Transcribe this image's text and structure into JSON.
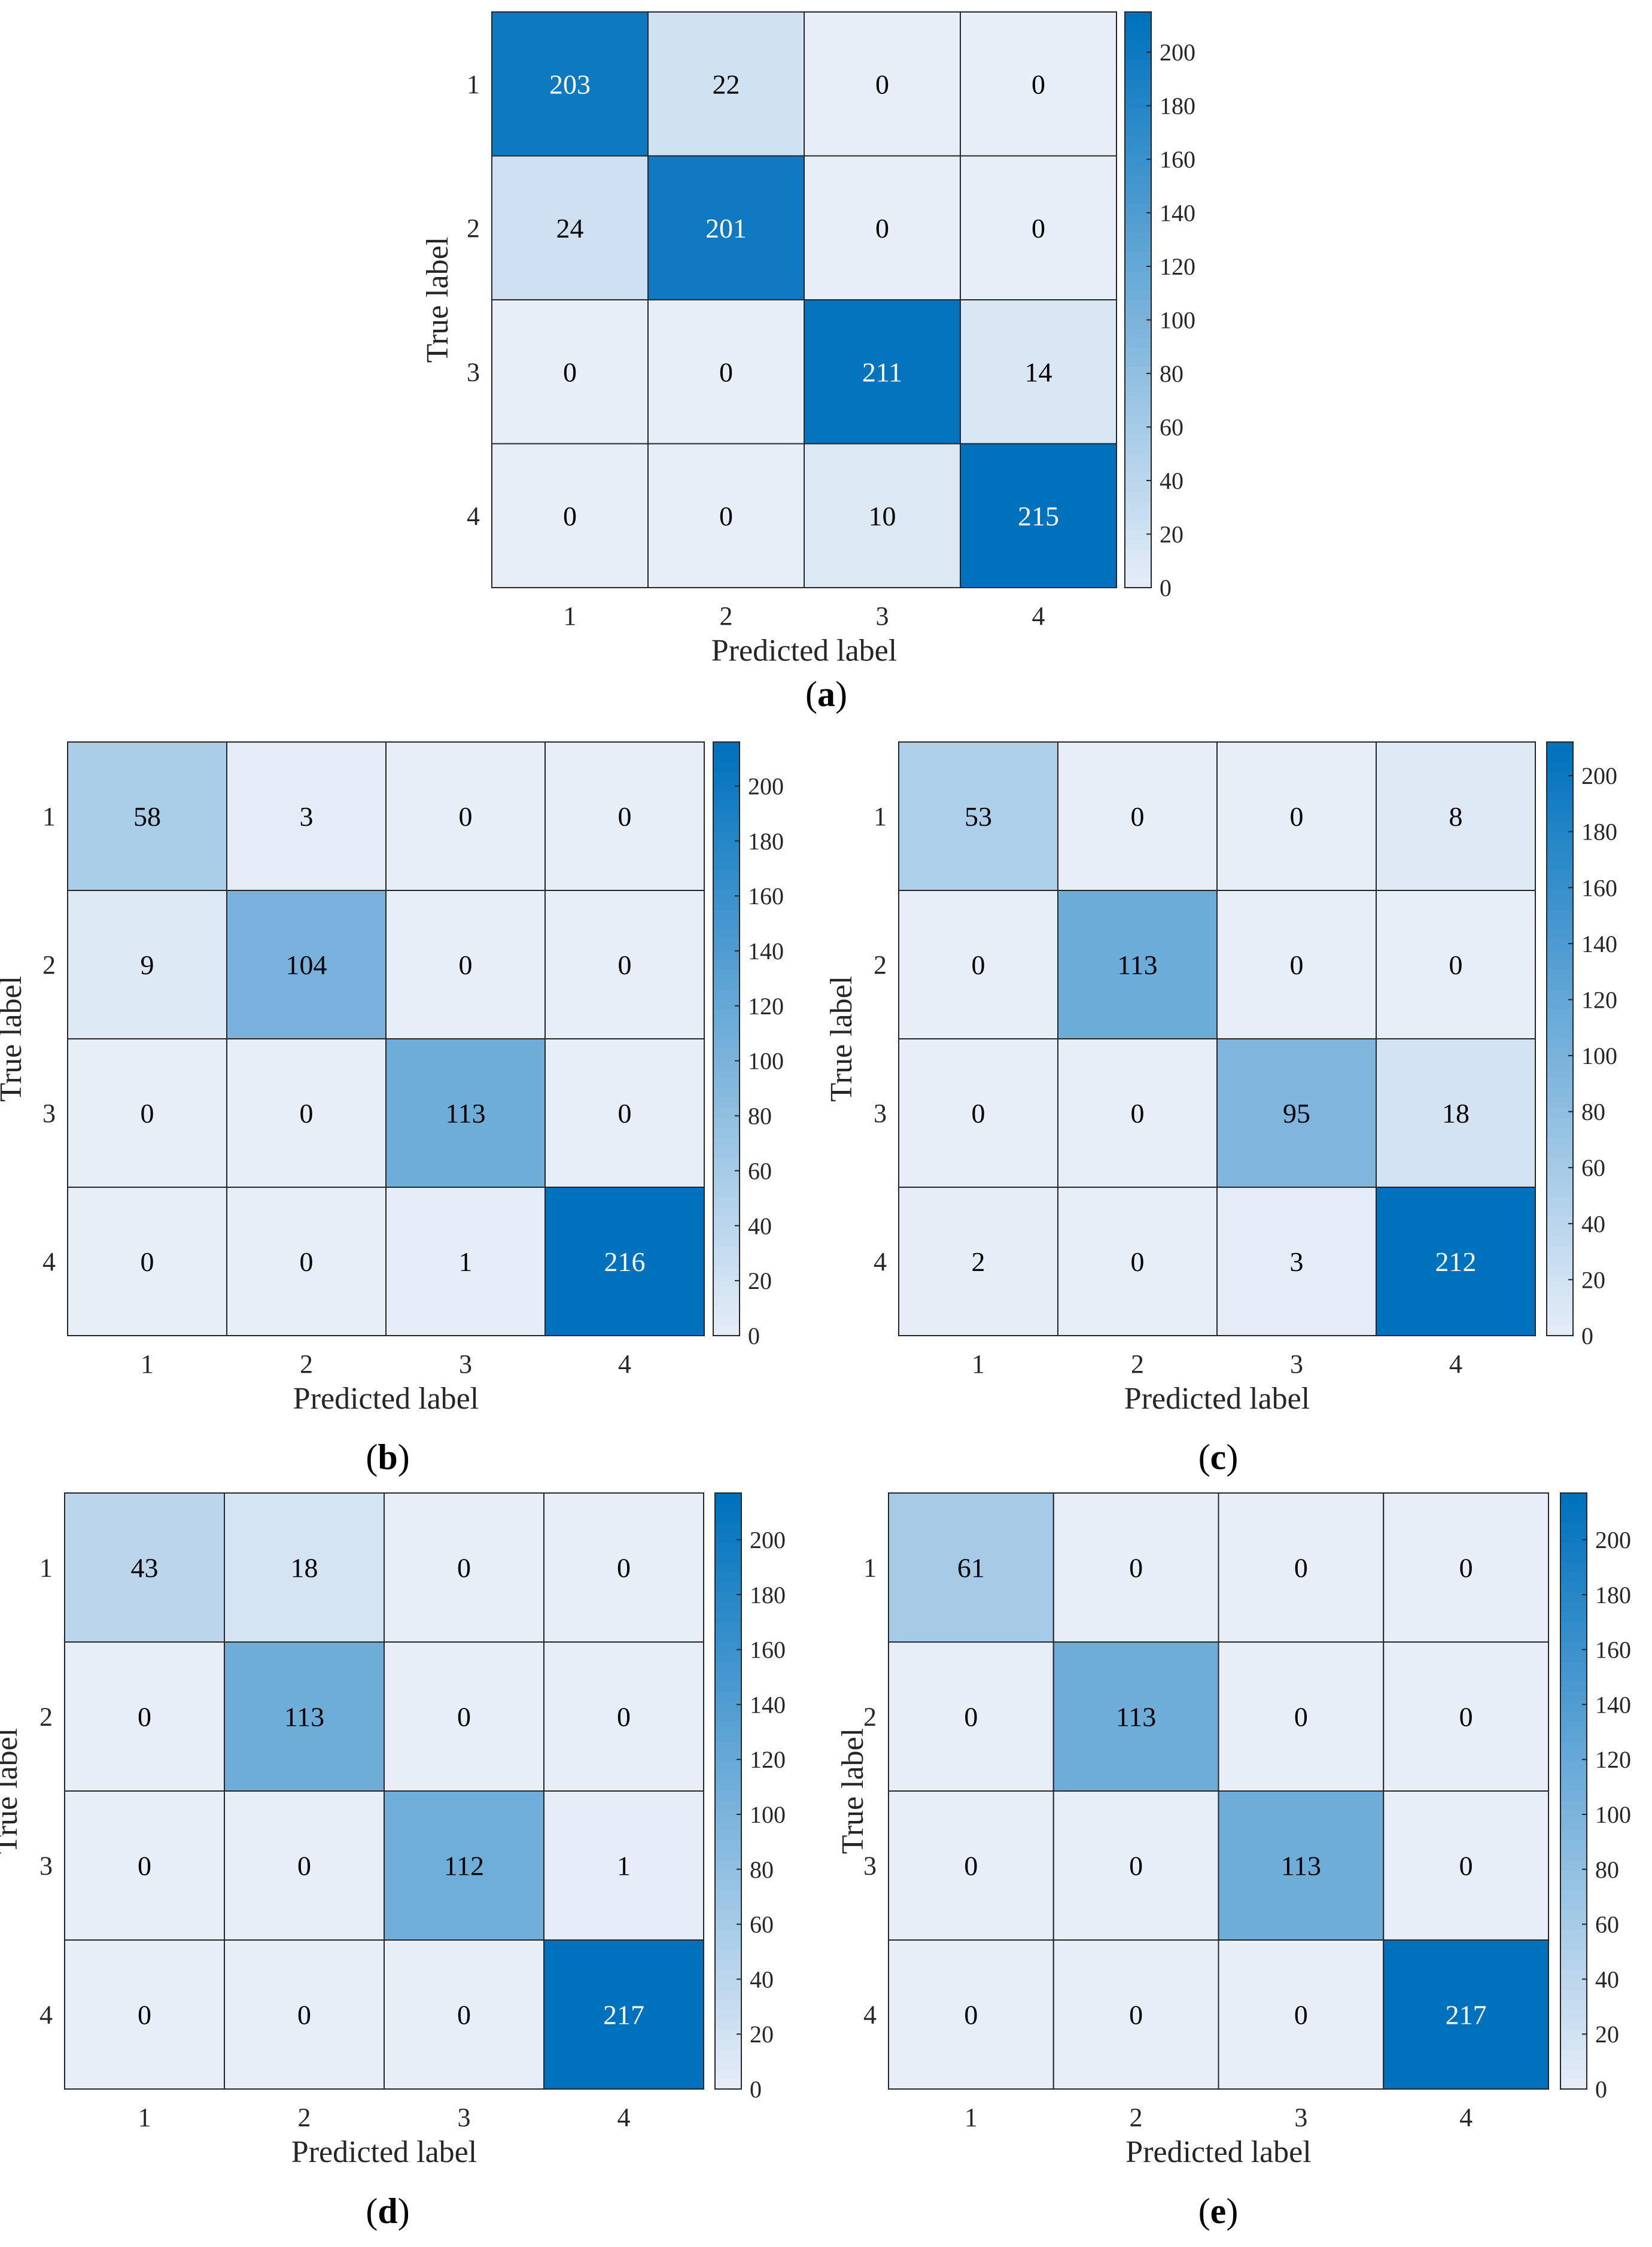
{
  "chart_data": [
    {
      "panel": "a",
      "type": "heatmap",
      "caption": {
        "open": "(",
        "letter": "a",
        "close": ")"
      },
      "xlabel": "Predicted label",
      "ylabel": "True label",
      "row_labels": [
        "1",
        "2",
        "3",
        "4"
      ],
      "col_labels": [
        "1",
        "2",
        "3",
        "4"
      ],
      "matrix": [
        [
          203,
          22,
          0,
          0
        ],
        [
          24,
          201,
          0,
          0
        ],
        [
          0,
          0,
          211,
          14
        ],
        [
          0,
          0,
          10,
          215
        ]
      ],
      "colorbar": {
        "min": 0,
        "max": 215,
        "ticks": [
          0,
          20,
          40,
          60,
          80,
          100,
          120,
          140,
          160,
          180,
          200
        ]
      }
    },
    {
      "panel": "b",
      "type": "heatmap",
      "caption": {
        "open": "(",
        "letter": "b",
        "close": ")"
      },
      "xlabel": "Predicted label",
      "ylabel": "True label",
      "row_labels": [
        "1",
        "2",
        "3",
        "4"
      ],
      "col_labels": [
        "1",
        "2",
        "3",
        "4"
      ],
      "matrix": [
        [
          58,
          3,
          0,
          0
        ],
        [
          9,
          104,
          0,
          0
        ],
        [
          0,
          0,
          113,
          0
        ],
        [
          0,
          0,
          1,
          216
        ]
      ],
      "colorbar": {
        "min": 0,
        "max": 216,
        "ticks": [
          0,
          20,
          40,
          60,
          80,
          100,
          120,
          140,
          160,
          180,
          200
        ]
      }
    },
    {
      "panel": "c",
      "type": "heatmap",
      "caption": {
        "open": "(",
        "letter": "c",
        "close": ")"
      },
      "xlabel": "Predicted label",
      "ylabel": "True label",
      "row_labels": [
        "1",
        "2",
        "3",
        "4"
      ],
      "col_labels": [
        "1",
        "2",
        "3",
        "4"
      ],
      "matrix": [
        [
          53,
          0,
          0,
          8
        ],
        [
          0,
          113,
          0,
          0
        ],
        [
          0,
          0,
          95,
          18
        ],
        [
          2,
          0,
          3,
          212
        ]
      ],
      "colorbar": {
        "min": 0,
        "max": 212,
        "ticks": [
          0,
          20,
          40,
          60,
          80,
          100,
          120,
          140,
          160,
          180,
          200
        ]
      }
    },
    {
      "panel": "d",
      "type": "heatmap",
      "caption": {
        "open": "(",
        "letter": "d",
        "close": ")"
      },
      "xlabel": "Predicted label",
      "ylabel": "True label",
      "row_labels": [
        "1",
        "2",
        "3",
        "4"
      ],
      "col_labels": [
        "1",
        "2",
        "3",
        "4"
      ],
      "matrix": [
        [
          43,
          18,
          0,
          0
        ],
        [
          0,
          113,
          0,
          0
        ],
        [
          0,
          0,
          112,
          1
        ],
        [
          0,
          0,
          0,
          217
        ]
      ],
      "colorbar": {
        "min": 0,
        "max": 217,
        "ticks": [
          0,
          20,
          40,
          60,
          80,
          100,
          120,
          140,
          160,
          180,
          200
        ]
      }
    },
    {
      "panel": "e",
      "type": "heatmap",
      "caption": {
        "open": "(",
        "letter": "e",
        "close": ")"
      },
      "xlabel": "Predicted label",
      "ylabel": "True label",
      "row_labels": [
        "1",
        "2",
        "3",
        "4"
      ],
      "col_labels": [
        "1",
        "2",
        "3",
        "4"
      ],
      "matrix": [
        [
          61,
          0,
          0,
          0
        ],
        [
          0,
          113,
          0,
          0
        ],
        [
          0,
          0,
          113,
          0
        ],
        [
          0,
          0,
          0,
          217
        ]
      ],
      "colorbar": {
        "min": 0,
        "max": 217,
        "ticks": [
          0,
          20,
          40,
          60,
          80,
          100,
          120,
          140,
          160,
          180,
          200
        ]
      }
    }
  ],
  "colors": {
    "low": "#e8eef8",
    "high": "#0072bd",
    "grid": "#262626",
    "text_dark": "#000000",
    "text_light": "#ffffff"
  }
}
